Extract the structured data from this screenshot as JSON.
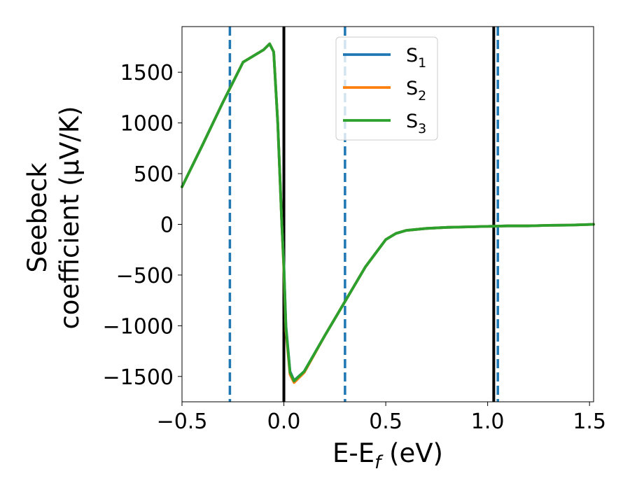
{
  "chart_data": {
    "type": "line",
    "xlabel": "E-E_f (eV)",
    "ylabel_lines": [
      "Seebeck",
      "coefficient  (μV/K)"
    ],
    "xlim": [
      -0.5,
      1.52
    ],
    "ylim": [
      -1750,
      1950
    ],
    "xticks": [
      -0.5,
      0.0,
      0.5,
      1.0,
      1.5
    ],
    "xtick_labels": [
      "−0.5",
      "0.0",
      "0.5",
      "1.0",
      "1.5"
    ],
    "yticks": [
      -1500,
      -1000,
      -500,
      0,
      500,
      1000,
      1500
    ],
    "ytick_labels": [
      "−1500",
      "−1000",
      "−500",
      "0",
      "500",
      "1000",
      "1500"
    ],
    "grid": false,
    "legend_position": "top-center",
    "vertical_lines": [
      {
        "x": -0.265,
        "style": "dashed",
        "color": "#1f77b4"
      },
      {
        "x": 0.0,
        "style": "solid",
        "color": "#000000"
      },
      {
        "x": 0.3,
        "style": "dashed",
        "color": "#1f77b4"
      },
      {
        "x": 1.03,
        "style": "solid",
        "color": "#000000"
      },
      {
        "x": 1.05,
        "style": "dashed",
        "color": "#1f77b4"
      }
    ],
    "series": [
      {
        "name": "S₁",
        "label_base": "S",
        "label_sub": "1",
        "color": "#1f77b4",
        "x": [
          -0.5,
          -0.4,
          -0.3,
          -0.2,
          -0.1,
          -0.07,
          -0.05,
          -0.03,
          -0.01,
          0.0,
          0.01,
          0.03,
          0.05,
          0.1,
          0.2,
          0.3,
          0.4,
          0.5,
          0.55,
          0.6,
          0.7,
          0.8,
          0.9,
          1.0,
          1.1,
          1.2,
          1.3,
          1.4,
          1.52
        ],
        "y": [
          370,
          780,
          1200,
          1600,
          1720,
          1780,
          1700,
          1000,
          0,
          -400,
          -1000,
          -1450,
          -1540,
          -1450,
          -1100,
          -760,
          -420,
          -150,
          -90,
          -60,
          -40,
          -30,
          -25,
          -20,
          -15,
          -15,
          -10,
          -8,
          0
        ]
      },
      {
        "name": "S₂",
        "label_base": "S",
        "label_sub": "2",
        "color": "#ff7f0e",
        "x": [
          -0.5,
          -0.4,
          -0.3,
          -0.2,
          -0.1,
          -0.07,
          -0.05,
          -0.03,
          -0.01,
          0.0,
          0.01,
          0.03,
          0.05,
          0.1,
          0.2,
          0.3,
          0.4,
          0.5,
          0.55,
          0.6,
          0.7,
          0.8,
          0.9,
          1.0,
          1.1,
          1.2,
          1.3,
          1.4,
          1.52
        ],
        "y": [
          370,
          780,
          1200,
          1600,
          1720,
          1780,
          1700,
          1000,
          0,
          -450,
          -1050,
          -1480,
          -1560,
          -1460,
          -1100,
          -760,
          -420,
          -150,
          -90,
          -60,
          -40,
          -30,
          -25,
          -20,
          -15,
          -15,
          -10,
          -8,
          0
        ]
      },
      {
        "name": "S₃",
        "label_base": "S",
        "label_sub": "3",
        "color": "#2ca02c",
        "x": [
          -0.5,
          -0.4,
          -0.3,
          -0.2,
          -0.1,
          -0.07,
          -0.05,
          -0.03,
          -0.01,
          0.0,
          0.01,
          0.03,
          0.05,
          0.1,
          0.2,
          0.3,
          0.4,
          0.5,
          0.55,
          0.6,
          0.7,
          0.8,
          0.9,
          1.0,
          1.1,
          1.2,
          1.3,
          1.4,
          1.52
        ],
        "y": [
          370,
          780,
          1200,
          1600,
          1720,
          1780,
          1700,
          1000,
          0,
          -420,
          -1020,
          -1460,
          -1545,
          -1450,
          -1100,
          -760,
          -420,
          -150,
          -90,
          -60,
          -40,
          -30,
          -25,
          -20,
          -15,
          -15,
          -10,
          -8,
          0
        ]
      }
    ]
  }
}
